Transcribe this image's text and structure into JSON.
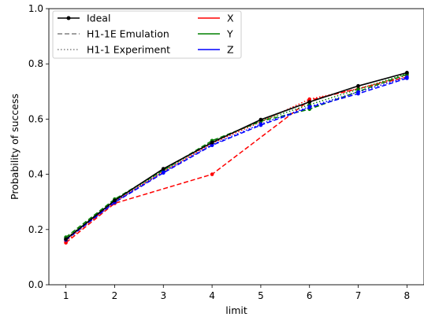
{
  "chart_data": {
    "type": "line",
    "title": "",
    "xlabel": "limit",
    "ylabel": "Probability of success",
    "x": [
      1,
      2,
      3,
      4,
      5,
      6,
      7,
      8
    ],
    "xlim": [
      0.65,
      8.35
    ],
    "ylim": [
      0.0,
      1.0
    ],
    "xticks": [
      "1",
      "2",
      "3",
      "4",
      "5",
      "6",
      "7",
      "8"
    ],
    "yticks": [
      "0.0",
      "0.2",
      "0.4",
      "0.6",
      "0.8",
      "1.0"
    ],
    "grid": false,
    "legend_position": "top-left",
    "legend_style": [
      {
        "label": "Ideal",
        "color": "#000000",
        "dash": "solid",
        "marker": true
      },
      {
        "label": "H1-1E Emulation",
        "color": "#808080",
        "dash": "dashed",
        "marker": false
      },
      {
        "label": "H1-1 Experiment",
        "color": "#808080",
        "dash": "dotted",
        "marker": false
      }
    ],
    "legend_color": [
      {
        "label": "X",
        "color": "#ff0000"
      },
      {
        "label": "Y",
        "color": "#008000"
      },
      {
        "label": "Z",
        "color": "#0000ff"
      }
    ],
    "series": [
      {
        "name": "Ideal",
        "color": "#000000",
        "style": "solid",
        "marker": true,
        "values": [
          0.165,
          0.305,
          0.42,
          0.515,
          0.598,
          0.662,
          0.72,
          0.768
        ]
      },
      {
        "name": "X",
        "group": "H1-1E Emulation",
        "color": "#ff0000",
        "style": "dashed",
        "values": [
          0.152,
          0.295,
          null,
          0.4,
          null,
          0.668,
          null,
          0.752
        ]
      },
      {
        "name": "X",
        "group": "H1-1 Experiment",
        "color": "#ff0000",
        "style": "dotted",
        "values": [
          0.158,
          0.3,
          0.41,
          0.512,
          0.59,
          0.672,
          0.71,
          0.758
        ]
      },
      {
        "name": "Y",
        "group": "H1-1E Emulation",
        "color": "#008000",
        "style": "dashed",
        "values": [
          0.172,
          0.31,
          0.415,
          0.522,
          0.592,
          0.636,
          0.7,
          0.762
        ]
      },
      {
        "name": "Y",
        "group": "H1-1 Experiment",
        "color": "#008000",
        "style": "dotted",
        "values": [
          0.168,
          0.305,
          0.413,
          0.518,
          0.594,
          0.652,
          0.708,
          0.764
        ]
      },
      {
        "name": "Z",
        "group": "H1-1E Emulation",
        "color": "#0000ff",
        "style": "dashed",
        "values": [
          0.162,
          0.298,
          0.405,
          0.505,
          0.578,
          0.642,
          0.692,
          0.748
        ]
      },
      {
        "name": "Z",
        "group": "H1-1 Experiment",
        "color": "#0000ff",
        "style": "dotted",
        "values": [
          0.165,
          0.3,
          0.408,
          0.508,
          0.582,
          0.645,
          0.698,
          0.752
        ]
      }
    ]
  }
}
